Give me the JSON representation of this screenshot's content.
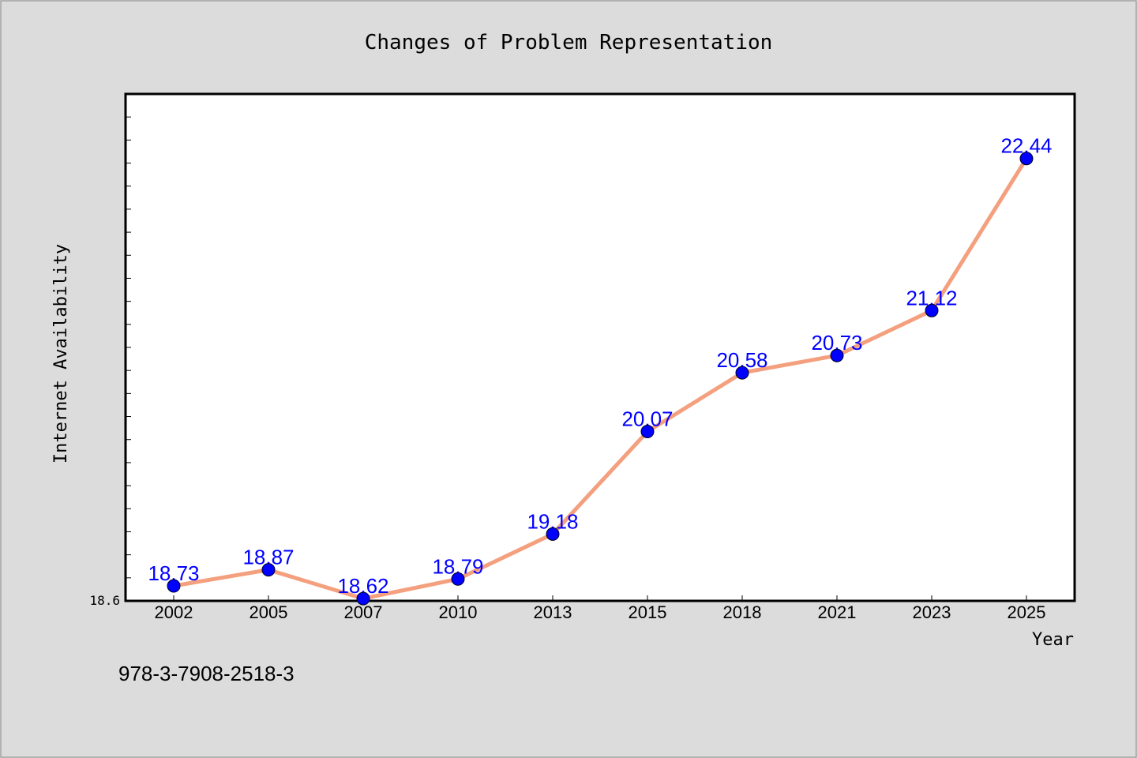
{
  "chart_data": {
    "type": "line",
    "title": "Changes of Problem Representation",
    "xlabel": "Year",
    "ylabel": "Internet Availability",
    "categories": [
      "2002",
      "2005",
      "2007",
      "2010",
      "2013",
      "2015",
      "2018",
      "2021",
      "2023",
      "2025"
    ],
    "series": [
      {
        "values": [
          18.73,
          18.87,
          18.62,
          18.79,
          19.18,
          20.07,
          20.58,
          20.73,
          21.12,
          22.44
        ]
      }
    ],
    "data_labels": [
      "18.73",
      "18.87",
      "18.62",
      "18.79",
      "19.18",
      "20.07",
      "20.58",
      "20.73",
      "21.12",
      "22.44"
    ],
    "ylim": [
      18.6,
      23.0
    ],
    "y_min_tick_label": "18.6",
    "grid": false,
    "legend": "none",
    "colors": {
      "line": "#f4a07f",
      "marker": "#0000ff",
      "data_label": "#0000ff",
      "plot_background": "#ffffff",
      "figure_background": "#dcdcdc"
    }
  },
  "footer_text": "978-3-7908-2518-3"
}
